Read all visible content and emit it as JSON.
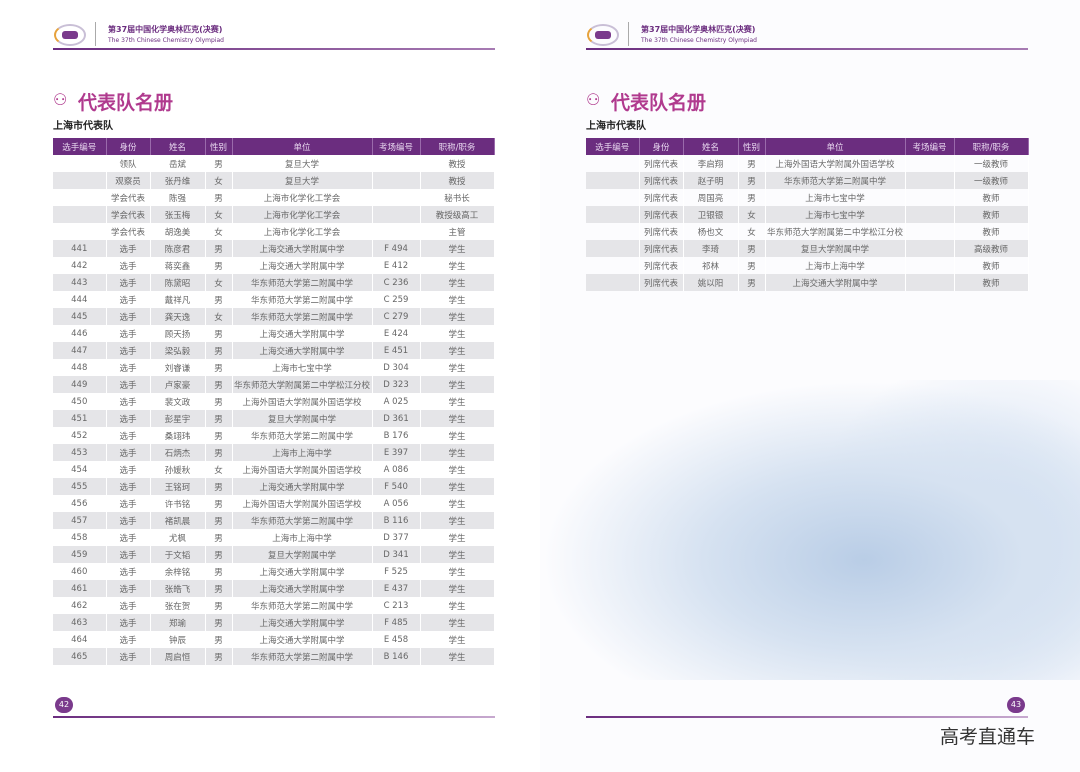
{
  "header": {
    "title": "第37届中国化学奥林匹克(决赛)",
    "subtitle": "The 37th Chinese Chemistry Olympiad"
  },
  "section_title": "代表队名册",
  "team": "上海市代表队",
  "columns": [
    "选手编号",
    "身份",
    "姓名",
    "性别",
    "单位",
    "考场编号",
    "职称/职务"
  ],
  "left_rows": [
    [
      "",
      "领队",
      "岳斌",
      "男",
      "复旦大学",
      "",
      "教授"
    ],
    [
      "",
      "观察员",
      "张丹维",
      "女",
      "复旦大学",
      "",
      "教授"
    ],
    [
      "",
      "学会代表",
      "陈强",
      "男",
      "上海市化学化工学会",
      "",
      "秘书长"
    ],
    [
      "",
      "学会代表",
      "张玉梅",
      "女",
      "上海市化学化工学会",
      "",
      "教授级高工"
    ],
    [
      "",
      "学会代表",
      "胡逸美",
      "女",
      "上海市化学化工学会",
      "",
      "主管"
    ],
    [
      "441",
      "选手",
      "陈彦君",
      "男",
      "上海交通大学附属中学",
      "F 494",
      "学生"
    ],
    [
      "442",
      "选手",
      "蒋奕鑫",
      "男",
      "上海交通大学附属中学",
      "E 412",
      "学生"
    ],
    [
      "443",
      "选手",
      "陈黛昭",
      "女",
      "华东师范大学第二附属中学",
      "C 236",
      "学生"
    ],
    [
      "444",
      "选手",
      "戴祥凡",
      "男",
      "华东师范大学第二附属中学",
      "C 259",
      "学生"
    ],
    [
      "445",
      "选手",
      "龚天逸",
      "女",
      "华东师范大学第二附属中学",
      "C 279",
      "学生"
    ],
    [
      "446",
      "选手",
      "顾天扬",
      "男",
      "上海交通大学附属中学",
      "E 424",
      "学生"
    ],
    [
      "447",
      "选手",
      "梁弘毅",
      "男",
      "上海交通大学附属中学",
      "E 451",
      "学生"
    ],
    [
      "448",
      "选手",
      "刘睿谦",
      "男",
      "上海市七宝中学",
      "D 304",
      "学生"
    ],
    [
      "449",
      "选手",
      "卢家豪",
      "男",
      "华东师范大学附属第二中学松江分校",
      "D 323",
      "学生"
    ],
    [
      "450",
      "选手",
      "裴文政",
      "男",
      "上海外国语大学附属外国语学校",
      "A 025",
      "学生"
    ],
    [
      "451",
      "选手",
      "彭星宇",
      "男",
      "复旦大学附属中学",
      "D 361",
      "学生"
    ],
    [
      "452",
      "选手",
      "桑翊玮",
      "男",
      "华东师范大学第二附属中学",
      "B 176",
      "学生"
    ],
    [
      "453",
      "选手",
      "石炳杰",
      "男",
      "上海市上海中学",
      "E 397",
      "学生"
    ],
    [
      "454",
      "选手",
      "孙媛秋",
      "女",
      "上海外国语大学附属外国语学校",
      "A 086",
      "学生"
    ],
    [
      "455",
      "选手",
      "王铭珂",
      "男",
      "上海交通大学附属中学",
      "F 540",
      "学生"
    ],
    [
      "456",
      "选手",
      "许书铭",
      "男",
      "上海外国语大学附属外国语学校",
      "A 056",
      "学生"
    ],
    [
      "457",
      "选手",
      "褚凯晨",
      "男",
      "华东师范大学第二附属中学",
      "B 116",
      "学生"
    ],
    [
      "458",
      "选手",
      "尤枫",
      "男",
      "上海市上海中学",
      "D 377",
      "学生"
    ],
    [
      "459",
      "选手",
      "于文韬",
      "男",
      "复旦大学附属中学",
      "D 341",
      "学生"
    ],
    [
      "460",
      "选手",
      "余梓铭",
      "男",
      "上海交通大学附属中学",
      "F 525",
      "学生"
    ],
    [
      "461",
      "选手",
      "张皓飞",
      "男",
      "上海交通大学附属中学",
      "E 437",
      "学生"
    ],
    [
      "462",
      "选手",
      "张在贺",
      "男",
      "华东师范大学第二附属中学",
      "C 213",
      "学生"
    ],
    [
      "463",
      "选手",
      "郑瑜",
      "男",
      "上海交通大学附属中学",
      "F 485",
      "学生"
    ],
    [
      "464",
      "选手",
      "钟辰",
      "男",
      "上海交通大学附属中学",
      "E 458",
      "学生"
    ],
    [
      "465",
      "选手",
      "周启恒",
      "男",
      "华东师范大学第二附属中学",
      "B 146",
      "学生"
    ]
  ],
  "right_rows": [
    [
      "",
      "列席代表",
      "李启翔",
      "男",
      "上海外国语大学附属外国语学校",
      "",
      "一级教师"
    ],
    [
      "",
      "列席代表",
      "赵子明",
      "男",
      "华东师范大学第二附属中学",
      "",
      "一级教师"
    ],
    [
      "",
      "列席代表",
      "周国亮",
      "男",
      "上海市七宝中学",
      "",
      "教师"
    ],
    [
      "",
      "列席代表",
      "卫银银",
      "女",
      "上海市七宝中学",
      "",
      "教师"
    ],
    [
      "",
      "列席代表",
      "杨也文",
      "女",
      "华东师范大学附属第二中学松江分校",
      "",
      "教师"
    ],
    [
      "",
      "列席代表",
      "李琦",
      "男",
      "复旦大学附属中学",
      "",
      "高级教师"
    ],
    [
      "",
      "列席代表",
      "祁林",
      "男",
      "上海市上海中学",
      "",
      "教师"
    ],
    [
      "",
      "列席代表",
      "姚以阳",
      "男",
      "上海交通大学附属中学",
      "",
      "教师"
    ]
  ],
  "page_left": "42",
  "page_right": "43",
  "watermark": "高考直通车",
  "colors": {
    "accent": "#6b2d7f",
    "title": "#b03a8e"
  }
}
